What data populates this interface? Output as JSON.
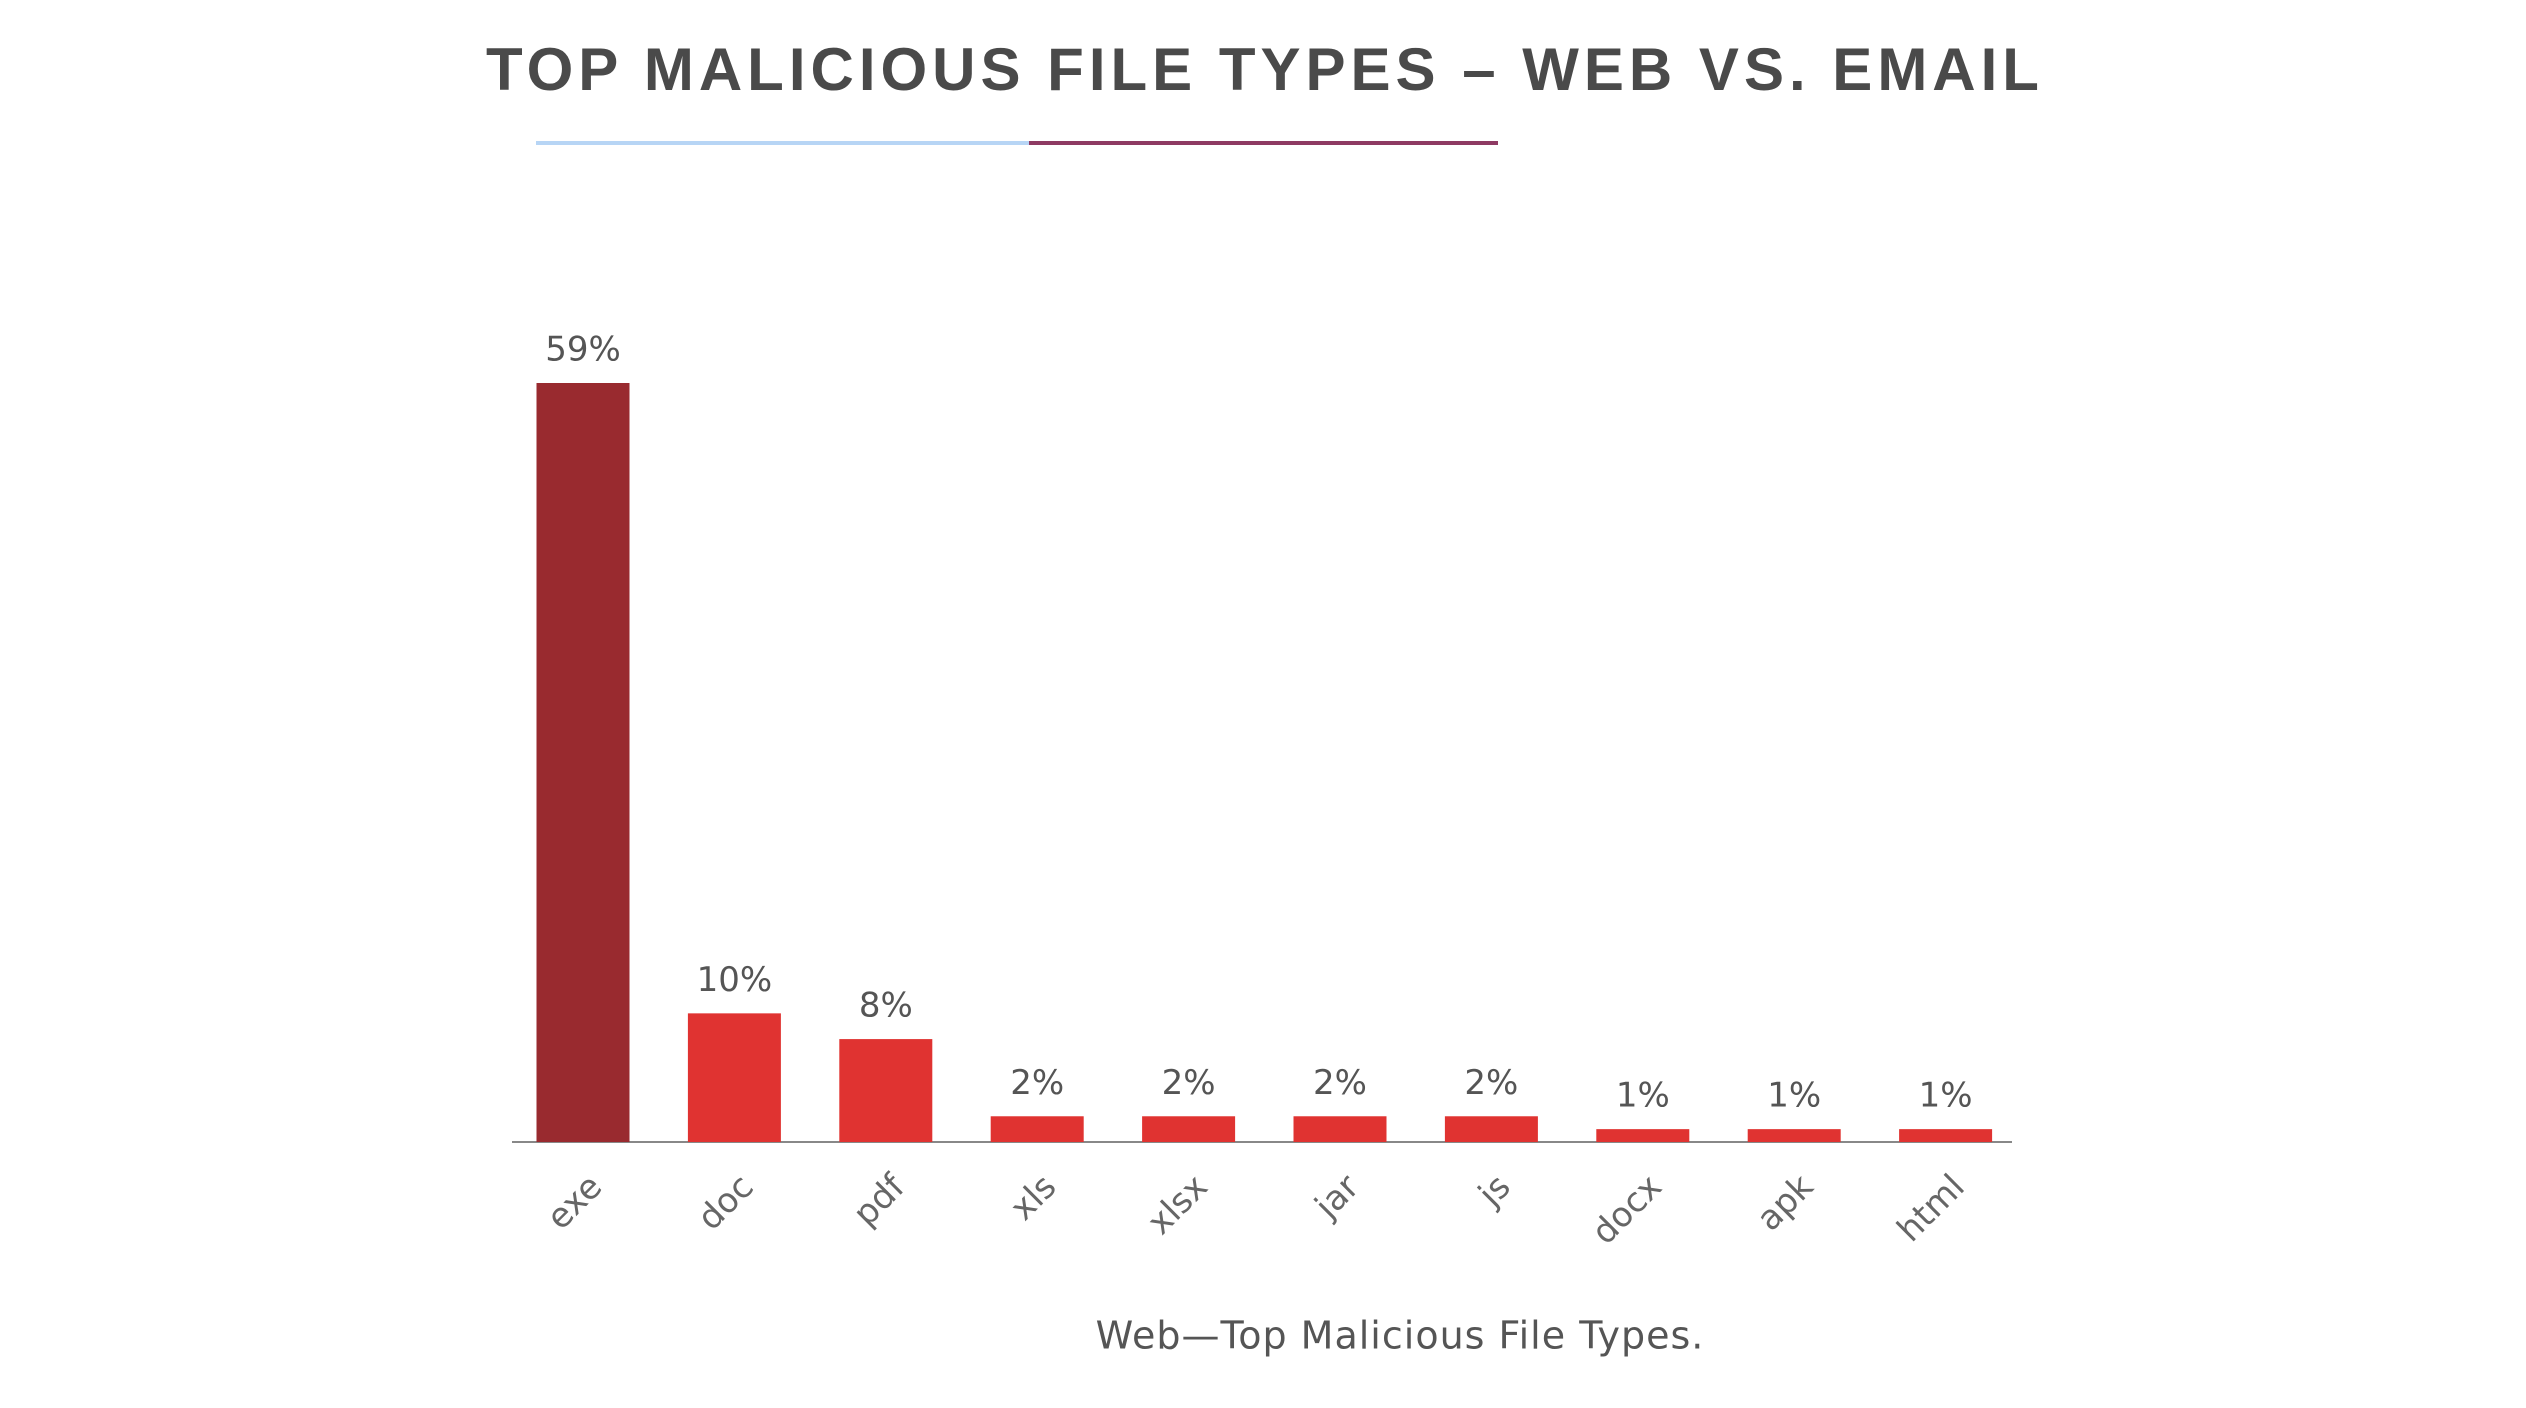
{
  "chart_data": {
    "type": "bar",
    "title": "TOP MALICIOUS FILE TYPES – WEB VS. EMAIL",
    "caption": "Web—Top Malicious File Types.",
    "categories": [
      "exe",
      "doc",
      "pdf",
      "xls",
      "xlsx",
      "jar",
      "js",
      "docx",
      "apk",
      "html"
    ],
    "values": [
      59,
      10,
      8,
      2,
      2,
      2,
      2,
      1,
      1,
      1
    ],
    "value_labels": [
      "59%",
      "10%",
      "8%",
      "2%",
      "2%",
      "2%",
      "2%",
      "1%",
      "1%",
      "1%"
    ],
    "colors": [
      "#992a2f",
      "#e03331",
      "#e03331",
      "#e03331",
      "#e03331",
      "#e03331",
      "#e03331",
      "#e03331",
      "#e03331",
      "#e03331"
    ]
  }
}
